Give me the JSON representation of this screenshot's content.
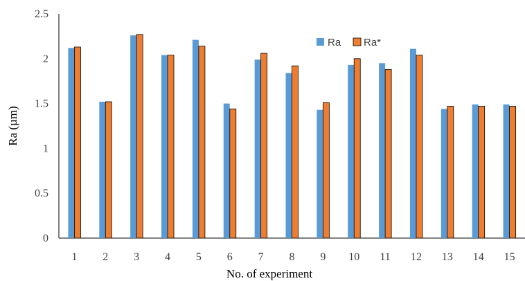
{
  "chart_data": {
    "type": "bar",
    "xlabel": "No. of experiment",
    "ylabel": "Ra (µm)",
    "ylim": [
      0,
      2.5
    ],
    "yticks": [
      "0",
      "0.5",
      "1",
      "1.5",
      "2",
      "2.5"
    ],
    "categories": [
      "1",
      "2",
      "3",
      "4",
      "5",
      "6",
      "7",
      "8",
      "9",
      "10",
      "11",
      "12",
      "13",
      "14",
      "15"
    ],
    "series": [
      {
        "name": "Ra",
        "color": "#5B9BD5",
        "values": [
          2.12,
          1.52,
          2.26,
          2.04,
          2.21,
          1.5,
          1.99,
          1.84,
          1.43,
          1.93,
          1.95,
          2.11,
          1.44,
          1.49,
          1.49
        ]
      },
      {
        "name": "Ra*",
        "color": "#ED7D31",
        "values": [
          2.13,
          1.52,
          2.27,
          2.04,
          2.14,
          1.44,
          2.06,
          1.92,
          1.51,
          2.0,
          1.88,
          2.04,
          1.47,
          1.47,
          1.47
        ]
      }
    ],
    "legend": "top-right",
    "grid": false
  }
}
